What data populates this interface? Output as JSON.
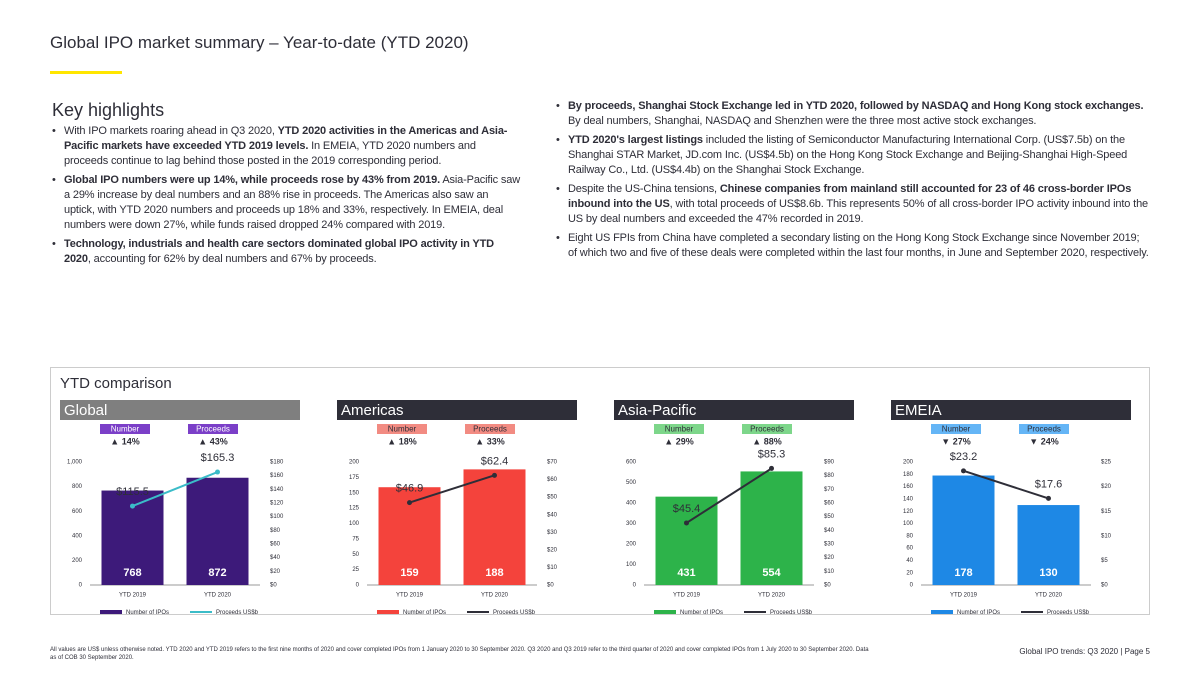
{
  "header": {
    "title": "Global IPO market summary – Year-to-date (YTD 2020)"
  },
  "highlights": {
    "title": "Key highlights",
    "left": [
      {
        "runs": [
          {
            "text": "With IPO markets roaring ahead in Q3 2020, ",
            "bold": false
          },
          {
            "text": "YTD 2020 activities in the Americas and Asia-Pacific markets have exceeded YTD 2019 levels.",
            "bold": true
          },
          {
            "text": " In EMEIA, YTD 2020 numbers and proceeds continue to lag behind those posted in the 2019 corresponding period.",
            "bold": false
          }
        ]
      },
      {
        "runs": [
          {
            "text": "Global IPO numbers were up 14%, while proceeds rose by 43% from 2019.",
            "bold": true
          },
          {
            "text": " Asia-Pacific saw a 29% increase by deal numbers and an 88% rise in proceeds. The Americas also saw an uptick, with YTD 2020 numbers and proceeds up 18% and 33%, respectively. In EMEIA, deal numbers were down 27%, while funds raised dropped 24% compared with 2019.",
            "bold": false
          }
        ]
      },
      {
        "runs": [
          {
            "text": "Technology, industrials and health care sectors dominated global IPO activity in YTD 2020",
            "bold": true
          },
          {
            "text": ", accounting for 62% by deal numbers and 67% by proceeds.",
            "bold": false
          }
        ]
      }
    ],
    "right": [
      {
        "runs": [
          {
            "text": "By proceeds, Shanghai Stock Exchange led in YTD 2020, followed by NASDAQ and Hong Kong stock exchanges.",
            "bold": true
          },
          {
            "text": " By deal numbers, Shanghai, NASDAQ and Shenzhen were the three most active stock exchanges.",
            "bold": false
          }
        ]
      },
      {
        "runs": [
          {
            "text": "YTD 2020's largest listings",
            "bold": true
          },
          {
            "text": " included the listing of Semiconductor Manufacturing International Corp. (US$7.5b) on the Shanghai STAR Market, JD.com Inc. (US$4.5b) on the Hong Kong Stock Exchange and Beijing-Shanghai High-Speed Railway Co., Ltd. (US$4.4b) on the Shanghai Stock Exchange.",
            "bold": false
          }
        ]
      },
      {
        "runs": [
          {
            "text": "Despite the US-China tensions, ",
            "bold": false
          },
          {
            "text": "Chinese companies from mainland still accounted for 23 of 46 cross-border IPOs inbound into the US",
            "bold": true
          },
          {
            "text": ", with total proceeds of US$8.6b. This represents 50% of all cross-border IPO activity inbound into the US by deal numbers and exceeded the 47% recorded in 2019.",
            "bold": false
          }
        ]
      },
      {
        "runs": [
          {
            "text": "Eight US FPIs from China have completed a secondary listing on the Hong Kong Stock Exchange since November 2019; of which two and five of these deals were completed within the last four months, in June and September 2020, respectively.",
            "bold": false
          }
        ]
      }
    ]
  },
  "comparison_title": "YTD comparison",
  "chart_data": [
    {
      "type": "bar_line",
      "title": "Global",
      "header_color": "#7f7f7f",
      "tag_color": "#7b3fc8",
      "tag_text_color": "#ffffff",
      "tags": [
        {
          "label": "Number",
          "change": "▲ 14%"
        },
        {
          "label": "Proceeds",
          "change": "▲ 43%"
        }
      ],
      "categories": [
        "YTD 2019",
        "YTD 2020"
      ],
      "series": [
        {
          "name": "Number of IPOs",
          "type": "bar",
          "color": "#3d1a7a",
          "values": [
            768,
            872
          ]
        },
        {
          "name": "Proceeds US$b",
          "type": "line",
          "axis": "y2",
          "color": "#3bbcc8",
          "values": [
            115.5,
            165.3
          ],
          "value_labels": [
            "$115.5",
            "$165.3"
          ]
        }
      ],
      "ylim": [
        0,
        1000
      ],
      "yticks": [
        0,
        200,
        400,
        600,
        800,
        {
          "value": 1000,
          "label": "1,000"
        }
      ],
      "y2lim": [
        0,
        180
      ],
      "y2ticks": [
        {
          "value": 0,
          "label": "$0"
        },
        {
          "value": 20,
          "label": "$20"
        },
        {
          "value": 40,
          "label": "$40"
        },
        {
          "value": 60,
          "label": "$60"
        },
        {
          "value": 80,
          "label": "$80"
        },
        {
          "value": 100,
          "label": "$100"
        },
        {
          "value": 120,
          "label": "$120"
        },
        {
          "value": 140,
          "label": "$140"
        },
        {
          "value": 160,
          "label": "$160"
        },
        {
          "value": 180,
          "label": "$180"
        }
      ]
    },
    {
      "type": "bar_line",
      "title": "Americas",
      "header_color": "#2e2e38",
      "tag_color": "#f28b82",
      "tag_text_color": "#2e2e38",
      "tags": [
        {
          "label": "Number",
          "change": "▲ 18%"
        },
        {
          "label": "Proceeds",
          "change": "▲ 33%"
        }
      ],
      "categories": [
        "YTD 2019",
        "YTD 2020"
      ],
      "series": [
        {
          "name": "Number of IPOs",
          "type": "bar",
          "color": "#f4433c",
          "values": [
            159,
            188
          ]
        },
        {
          "name": "Proceeds US$b",
          "type": "line",
          "axis": "y2",
          "color": "#2e2e38",
          "values": [
            46.9,
            62.4
          ],
          "value_labels": [
            "$46.9",
            "$62.4"
          ]
        }
      ],
      "ylim": [
        0,
        200
      ],
      "yticks": [
        0,
        25,
        50,
        75,
        100,
        125,
        150,
        175,
        200
      ],
      "y2lim": [
        0,
        70
      ],
      "y2ticks": [
        {
          "value": 0,
          "label": "$0"
        },
        {
          "value": 10,
          "label": "$10"
        },
        {
          "value": 20,
          "label": "$20"
        },
        {
          "value": 30,
          "label": "$30"
        },
        {
          "value": 40,
          "label": "$40"
        },
        {
          "value": 50,
          "label": "$50"
        },
        {
          "value": 60,
          "label": "$60"
        },
        {
          "value": 70,
          "label": "$70"
        }
      ]
    },
    {
      "type": "bar_line",
      "title": "Asia-Pacific",
      "header_color": "#2e2e38",
      "tag_color": "#7dd68a",
      "tag_text_color": "#2e2e38",
      "tags": [
        {
          "label": "Number",
          "change": "▲ 29%"
        },
        {
          "label": "Proceeds",
          "change": "▲ 88%"
        }
      ],
      "categories": [
        "YTD 2019",
        "YTD 2020"
      ],
      "series": [
        {
          "name": "Number of IPOs",
          "type": "bar",
          "color": "#2db34a",
          "values": [
            431,
            554
          ]
        },
        {
          "name": "Proceeds US$b",
          "type": "line",
          "axis": "y2",
          "color": "#2e2e38",
          "values": [
            45.4,
            85.3
          ],
          "value_labels": [
            "$45.4",
            "$85.3"
          ]
        }
      ],
      "ylim": [
        0,
        600
      ],
      "yticks": [
        0,
        100,
        200,
        300,
        400,
        500,
        600
      ],
      "y2lim": [
        0,
        90
      ],
      "y2ticks": [
        {
          "value": 0,
          "label": "$0"
        },
        {
          "value": 10,
          "label": "$10"
        },
        {
          "value": 20,
          "label": "$20"
        },
        {
          "value": 30,
          "label": "$30"
        },
        {
          "value": 40,
          "label": "$40"
        },
        {
          "value": 50,
          "label": "$50"
        },
        {
          "value": 60,
          "label": "$60"
        },
        {
          "value": 70,
          "label": "$70"
        },
        {
          "value": 80,
          "label": "$80"
        },
        {
          "value": 90,
          "label": "$90"
        }
      ]
    },
    {
      "type": "bar_line",
      "title": "EMEIA",
      "header_color": "#2e2e38",
      "tag_color": "#64b5f6",
      "tag_text_color": "#2e2e38",
      "tags": [
        {
          "label": "Number",
          "change": "▼ 27%"
        },
        {
          "label": "Proceeds",
          "change": "▼ 24%"
        }
      ],
      "categories": [
        "YTD 2019",
        "YTD 2020"
      ],
      "series": [
        {
          "name": "Number of IPOs",
          "type": "bar",
          "color": "#1e88e5",
          "values": [
            178,
            130
          ]
        },
        {
          "name": "Proceeds US$b",
          "type": "line",
          "axis": "y2",
          "color": "#2e2e38",
          "values": [
            23.2,
            17.6
          ],
          "value_labels": [
            "$23.2",
            "$17.6"
          ]
        }
      ],
      "ylim": [
        0,
        200
      ],
      "yticks": [
        0,
        20,
        40,
        60,
        80,
        100,
        120,
        140,
        160,
        180,
        200
      ],
      "y2lim": [
        0,
        25
      ],
      "y2ticks": [
        {
          "value": 0,
          "label": "$0"
        },
        {
          "value": 5,
          "label": "$5"
        },
        {
          "value": 10,
          "label": "$10"
        },
        {
          "value": 15,
          "label": "$15"
        },
        {
          "value": 20,
          "label": "$20"
        },
        {
          "value": 25,
          "label": "$25"
        }
      ]
    }
  ],
  "footer": {
    "note": "All values are US$ unless otherwise noted. YTD 2020 and YTD 2019 refers to the first nine months of 2020 and cover completed IPOs from 1 January 2020 to 30 September 2020. Q3 2020 and Q3 2019 refer to the third quarter of 2020 and cover completed IPOs from 1 July 2020 to 30 September 2020. Data as of COB 30 September 2020.",
    "page": "Global IPO trends: Q3 2020 | Page 5"
  }
}
